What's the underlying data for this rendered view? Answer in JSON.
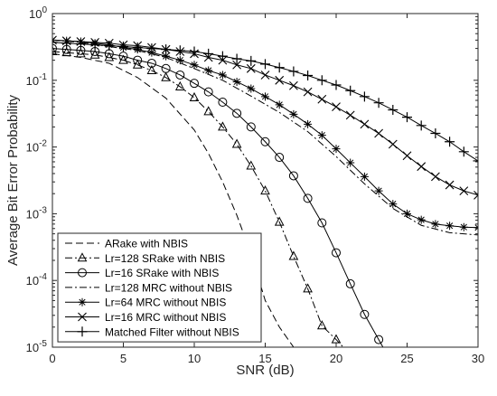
{
  "chart_data": {
    "type": "line",
    "title": "",
    "xlabel": "SNR (dB)",
    "ylabel": "Average Bit Error Probability",
    "xlim": [
      0,
      30
    ],
    "ylim": [
      1e-05,
      1
    ],
    "yscale": "log",
    "grid": false,
    "legend_position": "bottom-left",
    "x_ticks": [
      0,
      5,
      10,
      15,
      20,
      25,
      30
    ],
    "x_tick_labels": [
      "0",
      "5",
      "10",
      "15",
      "20",
      "25",
      "30"
    ],
    "y_tick_labels": [
      {
        "base": "10",
        "exp": "0"
      },
      {
        "base": "10",
        "exp": "-1"
      },
      {
        "base": "10",
        "exp": "-2"
      },
      {
        "base": "10",
        "exp": "-3"
      },
      {
        "base": "10",
        "exp": "-4"
      },
      {
        "base": "10",
        "exp": "-5"
      }
    ],
    "series": [
      {
        "name": "ARake with NBIS",
        "line": "dashed",
        "marker": "none",
        "x": [
          0,
          2,
          4,
          6,
          8,
          10,
          11,
          12,
          13,
          14,
          15,
          16,
          17
        ],
        "y": [
          0.25,
          0.22,
          0.18,
          0.11,
          0.054,
          0.018,
          0.008,
          0.003,
          0.00095,
          0.00025,
          5e-05,
          2e-05,
          1e-05
        ]
      },
      {
        "name": "Lr=128 SRake with NBIS",
        "line": "dashdot",
        "marker": "triangle",
        "x": [
          0,
          1,
          2,
          3,
          4,
          5,
          6,
          7,
          8,
          9,
          10,
          11,
          12,
          13,
          14,
          15,
          16,
          17,
          18,
          19,
          20,
          20.5
        ],
        "y": [
          0.27,
          0.26,
          0.25,
          0.24,
          0.22,
          0.2,
          0.17,
          0.14,
          0.11,
          0.08,
          0.055,
          0.034,
          0.02,
          0.011,
          0.0052,
          0.0022,
          0.00075,
          0.00023,
          7.5e-05,
          2.1e-05,
          1.3e-05,
          1e-05
        ]
      },
      {
        "name": "Lr=16 SRake with NBIS",
        "line": "solid",
        "marker": "circle",
        "x": [
          0,
          1,
          2,
          3,
          4,
          5,
          6,
          7,
          8,
          9,
          10,
          11,
          12,
          13,
          14,
          15,
          16,
          17,
          18,
          19,
          20,
          21,
          22,
          23,
          23.3
        ],
        "y": [
          0.3,
          0.29,
          0.28,
          0.27,
          0.25,
          0.23,
          0.2,
          0.18,
          0.15,
          0.12,
          0.09,
          0.067,
          0.047,
          0.032,
          0.02,
          0.012,
          0.007,
          0.0037,
          0.0017,
          0.00073,
          0.00026,
          8.9e-05,
          3.1e-05,
          1.3e-05,
          1e-05
        ]
      },
      {
        "name": "Lr=128 MRC without NBIS",
        "line": "dashdot",
        "marker": "none",
        "x": [
          0,
          2,
          4,
          6,
          8,
          10,
          12,
          14,
          16,
          18,
          20,
          22,
          24,
          26,
          28,
          30
        ],
        "y": [
          0.4,
          0.37,
          0.32,
          0.28,
          0.22,
          0.15,
          0.1,
          0.058,
          0.033,
          0.017,
          0.0072,
          0.0028,
          0.0012,
          0.00067,
          0.00052,
          0.00048
        ]
      },
      {
        "name": "Lr=64 MRC without NBIS",
        "line": "solid",
        "marker": "star",
        "x": [
          0,
          1,
          2,
          3,
          4,
          5,
          6,
          7,
          8,
          9,
          10,
          11,
          12,
          13,
          14,
          15,
          16,
          17,
          18,
          19,
          20,
          21,
          22,
          23,
          24,
          25,
          26,
          27,
          28,
          29,
          30
        ],
        "y": [
          0.4,
          0.39,
          0.38,
          0.36,
          0.34,
          0.31,
          0.29,
          0.26,
          0.23,
          0.2,
          0.17,
          0.14,
          0.12,
          0.095,
          0.075,
          0.057,
          0.043,
          0.031,
          0.022,
          0.015,
          0.0094,
          0.0058,
          0.0036,
          0.0022,
          0.0014,
          0.001,
          0.00081,
          0.0007,
          0.00066,
          0.00063,
          0.00062
        ]
      },
      {
        "name": "Lr=16 MRC without NBIS",
        "line": "solid",
        "marker": "x",
        "x": [
          0,
          1,
          2,
          3,
          4,
          5,
          6,
          7,
          8,
          9,
          10,
          11,
          12,
          13,
          14,
          15,
          16,
          17,
          18,
          19,
          20,
          21,
          22,
          23,
          24,
          25,
          26,
          27,
          28,
          29,
          30
        ],
        "y": [
          0.4,
          0.39,
          0.38,
          0.37,
          0.36,
          0.34,
          0.33,
          0.31,
          0.29,
          0.27,
          0.25,
          0.22,
          0.2,
          0.17,
          0.15,
          0.12,
          0.1,
          0.083,
          0.067,
          0.052,
          0.04,
          0.03,
          0.022,
          0.016,
          0.011,
          0.0074,
          0.0051,
          0.0036,
          0.0027,
          0.0022,
          0.0019
        ]
      },
      {
        "name": "Matched Filter without NBIS",
        "line": "solid",
        "marker": "plus",
        "x": [
          0,
          1,
          2,
          3,
          4,
          5,
          6,
          7,
          8,
          9,
          10,
          11,
          12,
          13,
          14,
          15,
          16,
          17,
          18,
          19,
          20,
          21,
          22,
          23,
          24,
          25,
          26,
          27,
          28,
          29,
          30
        ],
        "y": [
          0.37,
          0.36,
          0.35,
          0.34,
          0.33,
          0.32,
          0.31,
          0.3,
          0.29,
          0.28,
          0.27,
          0.25,
          0.23,
          0.21,
          0.195,
          0.175,
          0.155,
          0.136,
          0.118,
          0.1,
          0.085,
          0.07,
          0.057,
          0.046,
          0.036,
          0.028,
          0.021,
          0.016,
          0.012,
          0.0085,
          0.0062
        ]
      }
    ]
  }
}
